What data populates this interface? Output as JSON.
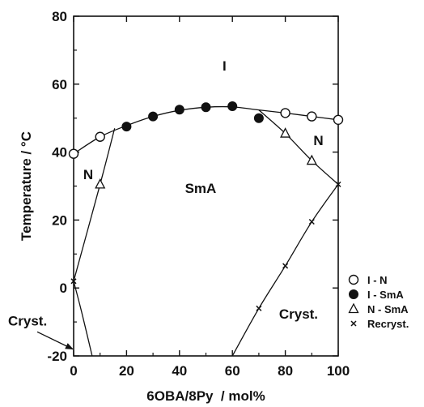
{
  "chart_data": {
    "type": "scatter",
    "xlabel": "6OBA/8Py  / mol%",
    "ylabel": "Temperature / °C",
    "xlim": [
      0,
      100
    ],
    "ylim": [
      -20,
      80
    ],
    "x_ticks": [
      0,
      20,
      40,
      60,
      80,
      100
    ],
    "y_ticks": [
      -20,
      0,
      20,
      40,
      60,
      80
    ],
    "grid": false,
    "legend_position": "right",
    "series": [
      {
        "name": "I - N",
        "marker": "open-circle",
        "points": [
          [
            0,
            39.5
          ],
          [
            10,
            44.5
          ],
          [
            80,
            51.5
          ],
          [
            90,
            50.5
          ],
          [
            100,
            49.5
          ]
        ]
      },
      {
        "name": "I - SmA",
        "marker": "filled-circle",
        "points": [
          [
            20,
            47.5
          ],
          [
            30,
            50.5
          ],
          [
            40,
            52.5
          ],
          [
            50,
            53.2
          ],
          [
            60,
            53.5
          ],
          [
            70,
            50.0
          ]
        ]
      },
      {
        "name": "N - SmA",
        "marker": "open-triangle",
        "points": [
          [
            10,
            30.5
          ],
          [
            80,
            45.5
          ],
          [
            90,
            37.5
          ]
        ]
      },
      {
        "name": "Recryst.",
        "marker": "cross",
        "points": [
          [
            0,
            2
          ],
          [
            70,
            -6
          ],
          [
            80,
            6.5
          ],
          [
            90,
            19.5
          ],
          [
            100,
            30.5
          ]
        ]
      }
    ],
    "curves": [
      {
        "role": "I-N / I-SmA boundary",
        "points": [
          [
            0,
            39.5
          ],
          [
            10,
            44.5
          ],
          [
            20,
            47.8
          ],
          [
            30,
            50.5
          ],
          [
            40,
            52.3
          ],
          [
            50,
            53.2
          ],
          [
            60,
            53.3
          ],
          [
            70,
            52.4
          ],
          [
            80,
            51.5
          ],
          [
            90,
            50.5
          ],
          [
            100,
            49.5
          ]
        ]
      },
      {
        "role": "N-SmA boundary (left)",
        "points": [
          [
            0,
            2
          ],
          [
            10,
            30.5
          ],
          [
            15.5,
            47
          ]
        ]
      },
      {
        "role": "N-SmA boundary (right)",
        "points": [
          [
            70,
            52.4
          ],
          [
            80,
            45.5
          ],
          [
            90,
            37.5
          ],
          [
            100,
            30.5
          ]
        ]
      },
      {
        "role": "Solidus (left)",
        "points": [
          [
            0,
            2
          ],
          [
            3,
            -7
          ],
          [
            7,
            -20
          ]
        ]
      },
      {
        "role": "Solidus (right)",
        "points": [
          [
            60,
            -20
          ],
          [
            70,
            -6
          ],
          [
            80,
            6.5
          ],
          [
            90,
            19.5
          ],
          [
            100,
            30.5
          ]
        ]
      }
    ],
    "annotations": [
      {
        "text": "I",
        "x": 57,
        "y": 64
      },
      {
        "text": "N",
        "x": 5.5,
        "y": 32
      },
      {
        "text": "N",
        "x": 92.5,
        "y": 42
      },
      {
        "text": "SmA",
        "x": 48,
        "y": 28
      },
      {
        "text": "Cryst.",
        "x": 85,
        "y": -9
      },
      {
        "text": "Cryst.",
        "x": -10,
        "y": -11,
        "arrow_to": [
          0,
          -18
        ]
      }
    ]
  }
}
